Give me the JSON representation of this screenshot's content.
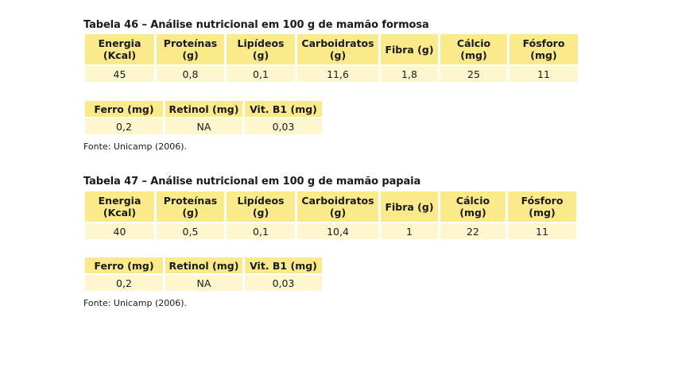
{
  "tables": [
    {
      "caption": "Tabela 46 – Análise nutricional em 100 g de mamão formosa",
      "main_headers": [
        [
          "Energia",
          "(Kcal)"
        ],
        [
          "Proteínas",
          "(g)"
        ],
        [
          "Lipídeos",
          "(g)"
        ],
        [
          "Carboidratos",
          "(g)"
        ],
        [
          "Fibra (g)",
          ""
        ],
        [
          "Cálcio",
          "(mg)"
        ],
        [
          "Fósforo",
          "(mg)"
        ]
      ],
      "main_values": [
        "45",
        "0,8",
        "0,1",
        "11,6",
        "1,8",
        "25",
        "11"
      ],
      "second_headers": [
        "Ferro (mg)",
        "Retinol (mg)",
        "Vit. B1 (mg)"
      ],
      "second_values": [
        "0,2",
        "NA",
        "0,03"
      ],
      "source": "Fonte: Unicamp (2006)."
    },
    {
      "caption": "Tabela 47 – Análise nutricional em 100 g de mamão papaia",
      "main_headers": [
        [
          "Energia",
          "(Kcal)"
        ],
        [
          "Proteínas",
          "(g)"
        ],
        [
          "Lipídeos",
          "(g)"
        ],
        [
          "Carboidratos",
          "(g)"
        ],
        [
          "Fibra (g)",
          ""
        ],
        [
          "Cálcio",
          "(mg)"
        ],
        [
          "Fósforo",
          "(mg)"
        ]
      ],
      "main_values": [
        "40",
        "0,5",
        "0,1",
        "10,4",
        "1",
        "22",
        "11"
      ],
      "second_headers": [
        "Ferro (mg)",
        "Retinol (mg)",
        "Vit. B1 (mg)"
      ],
      "second_values": [
        "0,2",
        "NA",
        "0,03"
      ],
      "source": "Fonte: Unicamp (2006)."
    }
  ],
  "colors": {
    "header_fill": "#fbea8c",
    "cell_fill": "#fdf6cf",
    "text": "#1a1a1a"
  }
}
